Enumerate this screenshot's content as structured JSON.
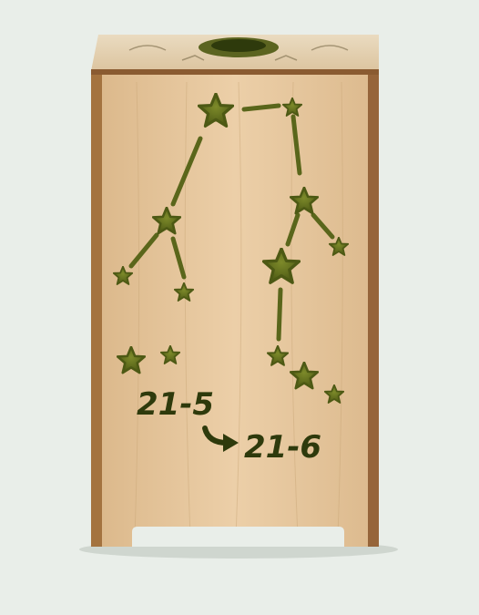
{
  "product": {
    "date_range": {
      "start": "21-5",
      "end": "21-6"
    }
  },
  "colors": {
    "background": "#e9eee9",
    "wood_face": "#e8c9a0",
    "wood_top": "#e4cfae",
    "wood_edge": "#9b6a3c",
    "cutout": "#5e6a1c",
    "cutout_dark": "#3a4510"
  },
  "icons": {
    "star": "star-icon",
    "arrow": "curved-arrow-icon"
  }
}
